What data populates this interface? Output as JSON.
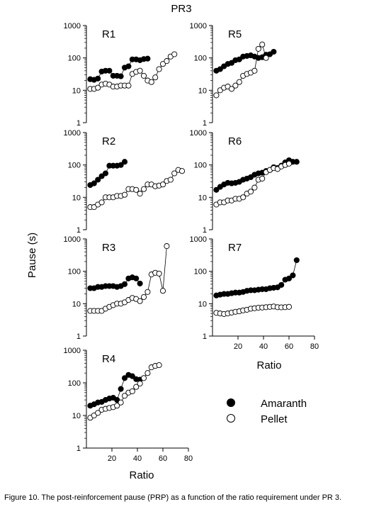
{
  "figure": {
    "title": "PR3",
    "ylabel": "Pause (s)",
    "xlabel_left": "Ratio",
    "xlabel_right": "Ratio",
    "legend": {
      "items": [
        "Amaranth",
        "Pellet"
      ]
    },
    "caption": "Figure 10. The post-reinforcement pause (PRP) as a function of the ratio requirement under PR 3."
  },
  "chart_data": [
    {
      "type": "line",
      "title": "R1",
      "yscale": "log",
      "ylim": [
        1,
        1000
      ],
      "xlim": [
        0,
        80
      ],
      "xticks": [],
      "yticks": [
        "1",
        "10",
        "100",
        "1000"
      ],
      "series": [
        {
          "name": "Amaranth",
          "marker": "filled",
          "x": [
            3,
            6,
            9,
            12,
            15,
            18,
            21,
            24,
            27,
            30,
            33,
            36,
            39,
            42,
            45,
            48
          ],
          "y": [
            22,
            21,
            23,
            38,
            40,
            40,
            28,
            28,
            27,
            50,
            55,
            90,
            90,
            85,
            92,
            95
          ]
        },
        {
          "name": "Pellet",
          "marker": "open",
          "x": [
            3,
            6,
            9,
            12,
            15,
            18,
            21,
            24,
            27,
            30,
            33,
            36,
            39,
            42,
            45,
            48,
            51,
            54,
            57,
            60,
            63,
            66,
            69
          ],
          "y": [
            11,
            11,
            12,
            15,
            16,
            15,
            13,
            13,
            14,
            14,
            14,
            32,
            37,
            40,
            28,
            20,
            18,
            25,
            45,
            65,
            80,
            110,
            130
          ]
        }
      ]
    },
    {
      "type": "line",
      "title": "R5",
      "yscale": "log",
      "ylim": [
        1,
        1000
      ],
      "xlim": [
        0,
        80
      ],
      "xticks": [],
      "yticks": [
        "1",
        "10",
        "100",
        "1000"
      ],
      "series": [
        {
          "name": "Amaranth",
          "marker": "filled",
          "x": [
            3,
            6,
            9,
            12,
            15,
            18,
            21,
            24,
            27,
            30,
            33,
            36,
            39,
            42,
            45,
            48
          ],
          "y": [
            40,
            45,
            55,
            65,
            70,
            85,
            90,
            110,
            115,
            120,
            110,
            100,
            105,
            125,
            130,
            155
          ]
        },
        {
          "name": "Pellet",
          "marker": "open",
          "x": [
            3,
            6,
            9,
            12,
            15,
            18,
            21,
            24,
            27,
            30,
            33,
            36,
            39,
            42
          ],
          "y": [
            7,
            10,
            12,
            13,
            11,
            14,
            18,
            28,
            32,
            35,
            40,
            190,
            260,
            100
          ]
        }
      ]
    },
    {
      "type": "line",
      "title": "R2",
      "yscale": "log",
      "ylim": [
        1,
        1000
      ],
      "xlim": [
        0,
        80
      ],
      "xticks": [],
      "yticks": [
        "1",
        "10",
        "100",
        "1000"
      ],
      "series": [
        {
          "name": "Amaranth",
          "marker": "filled",
          "x": [
            3,
            6,
            9,
            12,
            15,
            18,
            21,
            24,
            27,
            30
          ],
          "y": [
            24,
            27,
            35,
            45,
            55,
            95,
            95,
            95,
            100,
            125
          ]
        },
        {
          "name": "Pellet",
          "marker": "open",
          "x": [
            3,
            6,
            9,
            12,
            15,
            18,
            21,
            24,
            27,
            30,
            33,
            36,
            39,
            42,
            45,
            48,
            51,
            54,
            57,
            60,
            63,
            66,
            69,
            72,
            75
          ],
          "y": [
            5,
            5,
            6,
            7,
            10,
            10,
            10,
            11,
            11,
            12,
            18,
            18,
            17,
            13,
            18,
            25,
            25,
            22,
            23,
            25,
            32,
            35,
            55,
            70,
            65
          ]
        }
      ]
    },
    {
      "type": "line",
      "title": "R6",
      "yscale": "log",
      "ylim": [
        1,
        1000
      ],
      "xlim": [
        0,
        80
      ],
      "xticks": [],
      "yticks": [
        "1",
        "10",
        "100",
        "1000"
      ],
      "series": [
        {
          "name": "Amaranth",
          "marker": "filled",
          "x": [
            3,
            6,
            9,
            12,
            15,
            18,
            21,
            24,
            27,
            30,
            33,
            36,
            39,
            42,
            45,
            48,
            51,
            54,
            57,
            60,
            63,
            66
          ],
          "y": [
            17,
            21,
            25,
            28,
            27,
            28,
            30,
            35,
            38,
            42,
            50,
            55,
            58,
            65,
            70,
            85,
            80,
            95,
            120,
            140,
            125,
            125
          ]
        },
        {
          "name": "Pellet",
          "marker": "open",
          "x": [
            3,
            6,
            9,
            12,
            15,
            18,
            21,
            24,
            27,
            30,
            33,
            36,
            39,
            42,
            45,
            48,
            51,
            54,
            57,
            60
          ],
          "y": [
            6,
            7,
            7,
            8,
            8,
            9,
            9,
            10,
            13,
            15,
            20,
            35,
            38,
            60,
            70,
            80,
            75,
            90,
            100,
            110
          ]
        }
      ]
    },
    {
      "type": "line",
      "title": "R3",
      "yscale": "log",
      "ylim": [
        1,
        1000
      ],
      "xlim": [
        0,
        80
      ],
      "xticks": [],
      "yticks": [
        "1",
        "10",
        "100",
        "1000"
      ],
      "series": [
        {
          "name": "Amaranth",
          "marker": "filled",
          "x": [
            3,
            6,
            9,
            12,
            15,
            18,
            21,
            24,
            27,
            30,
            33,
            36,
            39,
            42
          ],
          "y": [
            30,
            30,
            33,
            33,
            35,
            35,
            35,
            33,
            35,
            40,
            60,
            65,
            60,
            42
          ]
        },
        {
          "name": "Pellet",
          "marker": "open",
          "x": [
            3,
            6,
            9,
            12,
            15,
            18,
            21,
            24,
            27,
            30,
            33,
            36,
            39,
            42,
            45,
            48,
            51,
            54,
            57,
            60,
            63
          ],
          "y": [
            6,
            6,
            6,
            6,
            7,
            8,
            9,
            10,
            10,
            11,
            13,
            15,
            14,
            12,
            16,
            23,
            80,
            90,
            85,
            25,
            600
          ]
        }
      ]
    },
    {
      "type": "line",
      "title": "R7",
      "yscale": "log",
      "ylim": [
        1,
        1000
      ],
      "xlim": [
        0,
        80
      ],
      "xticks": [
        "20",
        "40",
        "60",
        "80"
      ],
      "yticks": [
        "1",
        "10",
        "100",
        "1000"
      ],
      "series": [
        {
          "name": "Amaranth",
          "marker": "filled",
          "x": [
            3,
            6,
            9,
            12,
            15,
            18,
            21,
            24,
            27,
            30,
            33,
            36,
            39,
            42,
            45,
            48,
            51,
            54,
            57,
            60,
            63,
            66
          ],
          "y": [
            18,
            19,
            20,
            20,
            21,
            22,
            22,
            23,
            25,
            26,
            26,
            27,
            28,
            28,
            30,
            31,
            32,
            38,
            55,
            60,
            75,
            220
          ]
        },
        {
          "name": "Pellet",
          "marker": "open",
          "x": [
            3,
            6,
            9,
            12,
            15,
            18,
            21,
            24,
            27,
            30,
            33,
            36,
            39,
            42,
            45,
            48,
            51,
            54,
            57,
            60
          ],
          "y": [
            5.2,
            5,
            4.8,
            5,
            5.3,
            5.6,
            5.8,
            6.2,
            6.5,
            7,
            7.2,
            7.5,
            7.6,
            7.8,
            8,
            8.2,
            7.8,
            7.7,
            7.8,
            8
          ]
        }
      ]
    },
    {
      "type": "line",
      "title": "R4",
      "yscale": "log",
      "ylim": [
        1,
        1000
      ],
      "xlim": [
        0,
        80
      ],
      "xticks": [
        "20",
        "40",
        "60",
        "80"
      ],
      "yticks": [
        "1",
        "10",
        "100",
        "1000"
      ],
      "series": [
        {
          "name": "Amaranth",
          "marker": "filled",
          "x": [
            3,
            6,
            9,
            12,
            15,
            18,
            21,
            24,
            27,
            30,
            33,
            36,
            39,
            42
          ],
          "y": [
            20,
            22,
            25,
            26,
            30,
            33,
            35,
            30,
            65,
            140,
            175,
            160,
            130,
            125
          ]
        },
        {
          "name": "Pellet",
          "marker": "open",
          "x": [
            3,
            6,
            9,
            12,
            15,
            18,
            21,
            24,
            27,
            30,
            33,
            36,
            39,
            42,
            45,
            48,
            51,
            54,
            57
          ],
          "y": [
            8.5,
            10,
            12,
            15,
            16,
            17,
            18,
            20,
            25,
            40,
            50,
            55,
            75,
            95,
            140,
            200,
            300,
            330,
            350
          ]
        }
      ]
    }
  ]
}
